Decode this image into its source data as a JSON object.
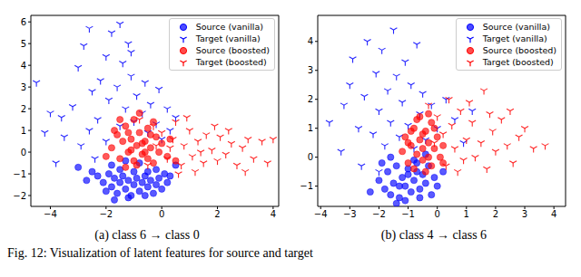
{
  "caption": "Fig. 12: Visualization of latent features for source and target",
  "chart_data": [
    {
      "type": "scatter",
      "title": "(a) class 6 → class 0",
      "legend": "upper right",
      "xlim": [
        -4.7,
        4.2
      ],
      "ylim": [
        -2.5,
        6.3
      ],
      "xticks": [
        {
          "value": -4,
          "label": "−4"
        },
        {
          "value": -2,
          "label": "−2"
        },
        0,
        2,
        4
      ],
      "yticks": [
        {
          "value": -2,
          "label": "−2"
        },
        {
          "value": -1,
          "label": "−1"
        },
        0,
        1,
        2,
        3,
        4,
        5,
        6
      ],
      "series": [
        {
          "name": "Source (vanilla)",
          "color": "#0000ff",
          "marker": "circle",
          "x": [
            -2.3,
            -2.1,
            -1.9,
            -1.8,
            -1.7,
            -1.6,
            -1.5,
            -1.4,
            -1.3,
            -1.2,
            -1.1,
            -1.0,
            -0.9,
            -0.8,
            -0.7,
            -0.6,
            -0.5,
            -0.4,
            -0.3,
            -0.2,
            -0.1,
            0.0,
            0.1,
            0.2,
            -1.5,
            -1.0,
            -0.5,
            -2.0,
            -1.2,
            -0.6,
            -0.2,
            0.3,
            -2.5,
            -1.8,
            -0.8,
            -1.3,
            -3.0,
            -2.7,
            0.5,
            -1.7
          ],
          "values": [
            -1.1,
            -1.4,
            -1.0,
            -1.6,
            -1.2,
            -1.9,
            -1.4,
            -1.1,
            -1.7,
            -1.3,
            -2.0,
            -1.5,
            -1.2,
            -1.8,
            -1.4,
            -1.1,
            -1.6,
            -1.3,
            -1.9,
            -1.5,
            -1.2,
            -1.7,
            -1.0,
            -1.4,
            -0.8,
            -0.9,
            -0.9,
            -1.8,
            -2.1,
            -2.0,
            -0.8,
            -1.1,
            -0.9,
            -0.6,
            -0.5,
            -0.4,
            -0.7,
            -1.3,
            -0.6,
            -2.2
          ]
        },
        {
          "name": "Target (vanilla)",
          "color": "#0000ff",
          "marker": "tri_down",
          "x": [
            -4.5,
            -4.0,
            -3.6,
            -3.2,
            -3.0,
            -2.8,
            -2.6,
            -2.5,
            -2.3,
            -2.2,
            -2.0,
            -1.9,
            -1.8,
            -1.6,
            -1.5,
            -1.4,
            -1.3,
            -1.2,
            -1.1,
            -1.0,
            -0.9,
            -1.1,
            -0.7,
            -0.6,
            -0.5,
            -0.4,
            -1.5,
            -0.2,
            -0.1,
            0.0,
            0.2,
            0.3,
            0.5,
            -3.5,
            -2.9,
            -2.4,
            -3.8,
            -2.0,
            -4.2,
            -2.6
          ],
          "values": [
            3.2,
            1.8,
            1.6,
            2.1,
            3.9,
            4.9,
            5.7,
            2.8,
            1.5,
            3.3,
            4.4,
            2.4,
            5.5,
            3.0,
            1.2,
            4.1,
            2.0,
            5.0,
            3.5,
            1.4,
            2.6,
            4.6,
            1.8,
            3.2,
            0.9,
            2.2,
            5.9,
            1.3,
            2.9,
            0.6,
            2.0,
            1.0,
            1.6,
            0.7,
            0.3,
            -0.3,
            -0.5,
            0.5,
            0.9,
            1.0
          ]
        },
        {
          "name": "Source (boosted)",
          "color": "#ff0000",
          "marker": "circle",
          "x": [
            -1.8,
            -1.6,
            -1.5,
            -1.4,
            -1.3,
            -1.2,
            -1.1,
            -1.0,
            -1.0,
            -0.9,
            -0.8,
            -0.7,
            -0.6,
            -0.5,
            -0.4,
            -0.3,
            -0.2,
            -0.1,
            0.0,
            -1.3,
            -0.8,
            -1.7,
            -0.5,
            -1.1,
            -0.7,
            -0.9,
            0.2,
            -1.5,
            -0.3,
            -0.6,
            0.3,
            -2.0,
            -1.2,
            -0.4,
            0.5
          ],
          "values": [
            0.2,
            0.8,
            -0.3,
            0.5,
            1.2,
            0.0,
            0.6,
            1.5,
            -0.4,
            0.3,
            0.9,
            -0.1,
            0.5,
            1.1,
            0.2,
            -0.5,
            0.7,
            0.0,
            0.4,
            -0.7,
            1.8,
            1.0,
            -0.3,
            0.1,
            0.4,
            -0.6,
            -0.2,
            1.5,
            1.4,
            0.0,
            0.6,
            -0.2,
            0.9,
            0.8,
            -0.4
          ]
        },
        {
          "name": "Target (boosted)",
          "color": "#ff0000",
          "marker": "tri_down",
          "x": [
            -0.8,
            -0.3,
            0.0,
            0.2,
            0.4,
            0.5,
            0.7,
            0.8,
            1.0,
            1.1,
            1.3,
            1.5,
            1.6,
            1.8,
            2.0,
            2.1,
            2.3,
            2.5,
            2.7,
            2.9,
            3.1,
            3.3,
            3.6,
            3.8,
            4.0,
            0.6,
            1.2,
            0.3,
            -0.5,
            1.9,
            2.4,
            0.9,
            3.0,
            -0.2,
            1.4
          ],
          "values": [
            1.5,
            1.2,
            0.9,
            -0.3,
            0.6,
            1.4,
            -0.6,
            0.3,
            1.0,
            -0.2,
            0.5,
            -0.5,
            0.8,
            0.1,
            -0.4,
            0.7,
            -0.1,
            0.4,
            -0.6,
            0.2,
            0.6,
            -0.3,
            0.5,
            -0.5,
            0.6,
            -1.0,
            -0.9,
            0.2,
            -0.6,
            1.2,
            1.0,
            1.6,
            -0.9,
            0.3,
            0.0
          ]
        }
      ]
    },
    {
      "type": "scatter",
      "title": "(b) class 4 → class 6",
      "legend": "upper right",
      "xlim": [
        -4.1,
        4.4
      ],
      "ylim": [
        -1.7,
        4.9
      ],
      "xticks": [
        {
          "value": -4,
          "label": "−4"
        },
        {
          "value": -3,
          "label": "−3"
        },
        {
          "value": -2,
          "label": "−2"
        },
        {
          "value": -1,
          "label": "−1"
        },
        0,
        1,
        2,
        3,
        4
      ],
      "yticks": [
        {
          "value": -1,
          "label": "−1"
        },
        0,
        1,
        2,
        3,
        4
      ],
      "series": [
        {
          "name": "Source (vanilla)",
          "color": "#0000ff",
          "marker": "circle",
          "x": [
            -2.0,
            -1.8,
            -1.7,
            -1.6,
            -1.5,
            -1.4,
            -1.3,
            -1.2,
            -1.1,
            -1.0,
            -0.9,
            -0.8,
            -0.7,
            -0.6,
            -0.5,
            -0.4,
            -0.3,
            -0.2,
            -0.1,
            0.0,
            -1.9,
            -1.1,
            -0.6,
            -1.4,
            -0.8,
            -1.6,
            0.2,
            -2.3,
            -1.0,
            -0.4,
            -1.3,
            -0.7
          ],
          "values": [
            -0.8,
            -1.1,
            -0.5,
            -1.3,
            -0.9,
            -0.3,
            -1.4,
            -0.7,
            -1.0,
            -0.4,
            -1.2,
            -0.8,
            -0.2,
            -1.1,
            -0.6,
            -0.9,
            -0.3,
            -1.3,
            -0.7,
            -1.0,
            -0.2,
            -1.5,
            -1.4,
            -1.6,
            -0.1,
            0.0,
            -0.5,
            -1.2,
            -0.6,
            0.1,
            -1.0,
            -0.5
          ]
        },
        {
          "name": "Target (vanilla)",
          "color": "#0000ff",
          "marker": "tri_down",
          "x": [
            -3.7,
            -3.2,
            -3.0,
            -2.9,
            -2.7,
            -2.5,
            -2.4,
            -2.2,
            -2.1,
            -2.0,
            -1.9,
            -1.8,
            -1.7,
            -1.6,
            -1.5,
            -1.4,
            -1.3,
            -1.2,
            -1.1,
            -1.0,
            -0.9,
            -0.8,
            -0.7,
            -0.6,
            -0.5,
            -0.4,
            -0.2,
            0.0,
            0.3,
            0.6,
            -2.6,
            -3.3,
            -2.0,
            0.9,
            1.2
          ],
          "values": [
            1.2,
            1.8,
            2.5,
            3.4,
            1.0,
            2.1,
            4.0,
            0.8,
            2.9,
            1.6,
            3.7,
            0.4,
            2.3,
            1.2,
            4.4,
            2.8,
            0.7,
            1.9,
            3.3,
            1.1,
            2.5,
            0.3,
            3.9,
            1.5,
            2.2,
            0.6,
            1.8,
            1.0,
            2.0,
            1.3,
            -0.3,
            0.2,
            -0.5,
            0.5,
            1.6
          ]
        },
        {
          "name": "Source (boosted)",
          "color": "#ff0000",
          "marker": "circle",
          "x": [
            -1.2,
            -1.1,
            -1.0,
            -0.9,
            -0.8,
            -0.8,
            -0.7,
            -0.6,
            -0.6,
            -0.5,
            -0.5,
            -0.4,
            -0.3,
            -0.3,
            -0.2,
            -0.2,
            -0.1,
            0.0,
            0.1,
            0.2,
            -0.9,
            -0.4,
            -0.7,
            -1.0,
            -0.1,
            0.2,
            -0.5,
            -0.3
          ],
          "values": [
            0.2,
            0.7,
            -0.2,
            0.4,
            1.0,
            -0.4,
            0.1,
            0.6,
            1.4,
            -0.1,
            0.3,
            0.9,
            0.0,
            0.5,
            1.2,
            -0.3,
            0.3,
            0.7,
            0.0,
            0.4,
            0.9,
            -0.5,
            1.3,
            0.5,
            1.0,
            -0.2,
            0.8,
            1.5
          ]
        },
        {
          "name": "Target (boosted)",
          "color": "#ff0000",
          "marker": "tri_down",
          "x": [
            -0.3,
            0.0,
            0.2,
            0.3,
            0.5,
            0.6,
            0.8,
            0.9,
            1.0,
            1.2,
            1.3,
            1.5,
            1.6,
            1.7,
            1.9,
            2.0,
            2.2,
            2.4,
            2.6,
            2.8,
            3.0,
            3.3,
            3.7,
            0.4,
            1.1,
            -0.1,
            2.5,
            0.7,
            1.8
          ],
          "values": [
            1.8,
            1.4,
            0.8,
            -0.3,
            1.1,
            0.3,
            1.6,
            -0.1,
            0.6,
            1.2,
            0.0,
            0.5,
            2.3,
            -0.4,
            0.9,
            0.2,
            1.3,
            0.4,
            -0.2,
            0.7,
            1.0,
            0.3,
            0.4,
            2.0,
            1.9,
            0.5,
            1.6,
            -0.5,
            1.5
          ]
        }
      ]
    }
  ]
}
